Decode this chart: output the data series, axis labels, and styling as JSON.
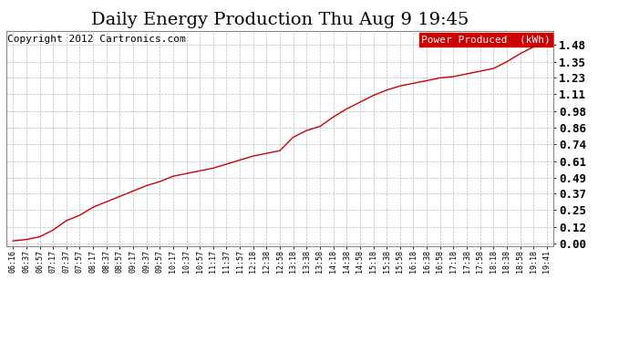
{
  "title": "Daily Energy Production Thu Aug 9 19:45",
  "copyright": "Copyright 2012 Cartronics.com",
  "legend_label": "Power Produced  (kWh)",
  "line_color": "#cc0000",
  "background_color": "#ffffff",
  "grid_color": "#bbbbbb",
  "yticks": [
    0.0,
    0.12,
    0.25,
    0.37,
    0.49,
    0.61,
    0.74,
    0.86,
    0.98,
    1.11,
    1.23,
    1.35,
    1.48
  ],
  "ylim": [
    -0.02,
    1.58
  ],
  "xtick_labels": [
    "06:16",
    "06:37",
    "06:57",
    "07:17",
    "07:37",
    "07:57",
    "08:17",
    "08:37",
    "08:57",
    "09:17",
    "09:37",
    "09:57",
    "10:17",
    "10:37",
    "10:57",
    "11:17",
    "11:37",
    "11:57",
    "12:18",
    "12:38",
    "12:58",
    "13:18",
    "13:38",
    "13:58",
    "14:18",
    "14:38",
    "14:58",
    "15:18",
    "15:38",
    "15:58",
    "16:18",
    "16:38",
    "16:58",
    "17:18",
    "17:38",
    "17:58",
    "18:18",
    "18:38",
    "18:58",
    "19:18",
    "19:41"
  ],
  "x_values": [
    0,
    1,
    2,
    3,
    4,
    5,
    6,
    7,
    8,
    9,
    10,
    11,
    12,
    13,
    14,
    15,
    16,
    17,
    18,
    19,
    20,
    21,
    22,
    23,
    24,
    25,
    26,
    27,
    28,
    29,
    30,
    31,
    32,
    33,
    34,
    35,
    36,
    37,
    38,
    39,
    40
  ],
  "y_values": [
    0.02,
    0.03,
    0.05,
    0.1,
    0.17,
    0.21,
    0.27,
    0.31,
    0.35,
    0.39,
    0.43,
    0.46,
    0.5,
    0.52,
    0.54,
    0.56,
    0.59,
    0.62,
    0.65,
    0.67,
    0.69,
    0.79,
    0.84,
    0.87,
    0.94,
    1.0,
    1.05,
    1.1,
    1.14,
    1.17,
    1.19,
    1.21,
    1.23,
    1.24,
    1.26,
    1.28,
    1.3,
    1.35,
    1.41,
    1.46,
    1.48
  ],
  "title_fontsize": 14,
  "copyright_fontsize": 8,
  "legend_fontsize": 8,
  "ytick_fontsize": 9,
  "xtick_fontsize": 6
}
